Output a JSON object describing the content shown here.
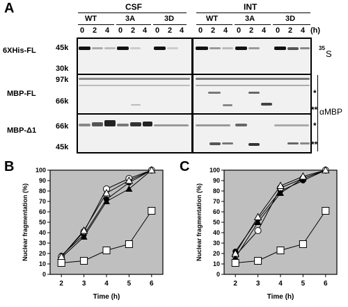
{
  "panels": {
    "a": "A",
    "b": "B",
    "c": "C"
  },
  "gel": {
    "conditions": [
      "CSF",
      "INT"
    ],
    "genotypes": [
      "WT",
      "3A",
      "3D",
      "WT",
      "3A",
      "3D"
    ],
    "time_labels": [
      "0",
      "2",
      "4"
    ],
    "time_unit": "(h)",
    "rows": [
      {
        "name": "6XHis-FL",
        "markers": [
          "45k",
          "30k"
        ]
      },
      {
        "name": "MBP-FL",
        "markers": [
          "97k",
          "66k"
        ]
      },
      {
        "name": "MBP-Δ1",
        "markers": [
          "66k",
          "45k"
        ]
      }
    ],
    "right_labels": {
      "s35": "35",
      "s35_suffix": "S",
      "alpha_mbp": "αMBP",
      "star1": "*",
      "star2": "**",
      "star3": "*",
      "star4": "**"
    }
  },
  "chart_data": [
    {
      "type": "line",
      "panel": "B",
      "xlabel": "Time (h)",
      "ylabel": "Nuclear fragmentation (%)",
      "xlim": [
        1.5,
        6.5
      ],
      "ylim": [
        0,
        100
      ],
      "x_ticks": [
        2,
        3,
        4,
        5,
        6
      ],
      "y_ticks": [
        0,
        10,
        20,
        30,
        40,
        50,
        60,
        70,
        80,
        90,
        100
      ],
      "background": "#bfbfbf",
      "x": [
        2,
        3,
        4,
        5,
        6
      ],
      "series": [
        {
          "marker": "filled-circle",
          "values": [
            18,
            38,
            72,
            88,
            100
          ]
        },
        {
          "marker": "open-circle",
          "values": [
            17,
            41,
            82,
            92,
            100
          ]
        },
        {
          "marker": "filled-triangle",
          "values": [
            16,
            36,
            70,
            82,
            100
          ]
        },
        {
          "marker": "open-triangle",
          "values": [
            17,
            42,
            78,
            90,
            100
          ]
        },
        {
          "marker": "open-square",
          "values": [
            11,
            13,
            23,
            29,
            61
          ]
        }
      ]
    },
    {
      "type": "line",
      "panel": "C",
      "xlabel": "Time (h)",
      "ylabel": "Nuclear fragmentation (%)",
      "xlim": [
        1.5,
        6.5
      ],
      "ylim": [
        0,
        100
      ],
      "x_ticks": [
        2,
        3,
        4,
        5,
        6
      ],
      "y_ticks": [
        0,
        10,
        20,
        30,
        40,
        50,
        60,
        70,
        80,
        90,
        100
      ],
      "background": "#bfbfbf",
      "x": [
        2,
        3,
        4,
        5,
        6
      ],
      "series": [
        {
          "marker": "filled-circle",
          "values": [
            22,
            53,
            80,
            90,
            100
          ]
        },
        {
          "marker": "open-circle",
          "values": [
            18,
            42,
            83,
            92,
            100
          ]
        },
        {
          "marker": "filled-triangle",
          "values": [
            16,
            50,
            78,
            92,
            100
          ]
        },
        {
          "marker": "open-triangle",
          "values": [
            20,
            55,
            85,
            94,
            100
          ]
        },
        {
          "marker": "open-square",
          "values": [
            11,
            13,
            23,
            29,
            61
          ]
        }
      ]
    }
  ]
}
